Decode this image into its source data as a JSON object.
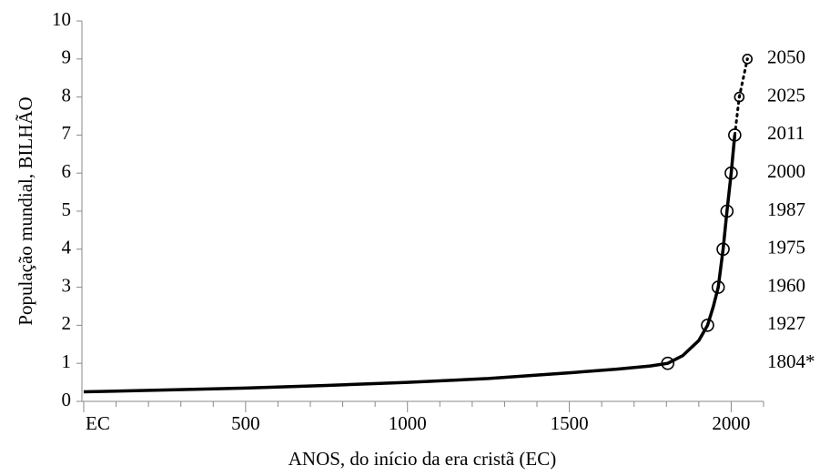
{
  "chart_data": {
    "type": "line",
    "y_label": "População mundial, BILHÃO",
    "x_label": "ANOS, do início da era cristã (EC)",
    "xlim": [
      0,
      2100
    ],
    "xticks": [
      {
        "value": 0,
        "label": "EC"
      },
      500,
      1000,
      1500,
      2000
    ],
    "xminorticks": [
      100,
      200,
      300,
      400,
      600,
      700,
      800,
      900,
      1100,
      1200,
      1300,
      1400,
      1600,
      1700,
      1800,
      1900,
      2100
    ],
    "ylim": [
      0,
      10
    ],
    "yticks": [
      0,
      1,
      2,
      3,
      4,
      5,
      6,
      7,
      8,
      9,
      10
    ],
    "color": "#000000",
    "series": [
      {
        "style": "solid",
        "x": [
          0,
          250,
          500,
          750,
          1000,
          1250,
          1500,
          1650,
          1750,
          1804,
          1850,
          1900,
          1927,
          1945,
          1960,
          1975,
          1987,
          2000,
          2011
        ],
        "values": [
          0.25,
          0.3,
          0.35,
          0.42,
          0.5,
          0.6,
          0.75,
          0.85,
          0.93,
          1,
          1.2,
          1.6,
          2,
          2.5,
          3,
          4,
          5,
          6,
          7
        ]
      },
      {
        "style": "dotted",
        "x": [
          2011,
          2025,
          2050
        ],
        "values": [
          7,
          8,
          9
        ]
      }
    ],
    "milestones": {
      "x": [
        1804,
        1927,
        1960,
        1975,
        1987,
        2000,
        2011,
        2025,
        2050
      ],
      "values": [
        1,
        2,
        3,
        4,
        5,
        6,
        7,
        8,
        9
      ],
      "labels": [
        "1804*",
        "1927",
        "1960",
        "1975",
        "1987",
        "2000",
        "2011",
        "2025",
        "2050"
      ]
    }
  }
}
